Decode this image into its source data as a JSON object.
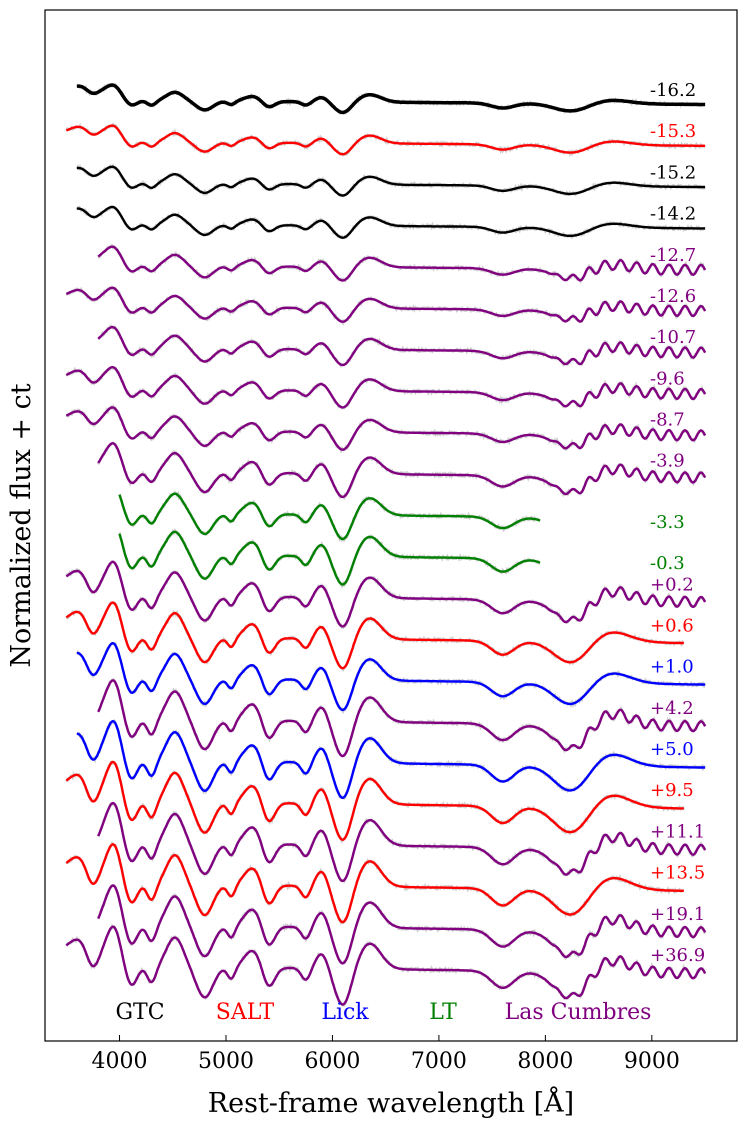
{
  "chart_data": {
    "type": "line",
    "title": "",
    "xlabel": "Rest-frame wavelength [Å]",
    "ylabel": "Normalized flux + ct",
    "xlim": [
      3300,
      9800
    ],
    "xticks": [
      "4000",
      "5000",
      "6000",
      "7000",
      "8000",
      "9000"
    ],
    "xtick_values": [
      4000,
      5000,
      6000,
      7000,
      8000,
      9000
    ],
    "colors": {
      "GTC": "#000000",
      "SALT": "#ff0000",
      "Lick": "#0000ff",
      "LT": "#008000",
      "Las Cumbres": "#800080"
    },
    "legend": [
      "GTC",
      "SALT",
      "Lick",
      "LT",
      "Las Cumbres"
    ],
    "series": [
      {
        "name": "-16.2",
        "telescope": "GTC",
        "x_start": 3600,
        "x_end": 9500
      },
      {
        "name": "-15.3",
        "telescope": "SALT",
        "x_start": 3500,
        "x_end": 9500
      },
      {
        "name": "-15.2",
        "telescope": "GTC",
        "x_start": 3600,
        "x_end": 9500
      },
      {
        "name": "-14.2",
        "telescope": "GTC",
        "x_start": 3600,
        "x_end": 9500
      },
      {
        "name": "-12.7",
        "telescope": "Las Cumbres",
        "x_start": 3800,
        "x_end": 9500
      },
      {
        "name": "-12.6",
        "telescope": "Las Cumbres",
        "x_start": 3500,
        "x_end": 9500
      },
      {
        "name": "-10.7",
        "telescope": "Las Cumbres",
        "x_start": 3800,
        "x_end": 9500
      },
      {
        "name": "-9.6",
        "telescope": "Las Cumbres",
        "x_start": 3500,
        "x_end": 9500
      },
      {
        "name": "-8.7",
        "telescope": "Las Cumbres",
        "x_start": 3500,
        "x_end": 9500
      },
      {
        "name": "-3.9",
        "telescope": "Las Cumbres",
        "x_start": 3800,
        "x_end": 9500
      },
      {
        "name": "-3.3",
        "telescope": "LT",
        "x_start": 4000,
        "x_end": 7950
      },
      {
        "name": "-0.3",
        "telescope": "LT",
        "x_start": 4000,
        "x_end": 7950
      },
      {
        "name": "+0.2",
        "telescope": "Las Cumbres",
        "x_start": 3500,
        "x_end": 9500
      },
      {
        "name": "+0.6",
        "telescope": "SALT",
        "x_start": 3500,
        "x_end": 9300
      },
      {
        "name": "+1.0",
        "telescope": "Lick",
        "x_start": 3600,
        "x_end": 9500
      },
      {
        "name": "+4.2",
        "telescope": "Las Cumbres",
        "x_start": 3800,
        "x_end": 9500
      },
      {
        "name": "+5.0",
        "telescope": "Lick",
        "x_start": 3600,
        "x_end": 9500
      },
      {
        "name": "+9.5",
        "telescope": "SALT",
        "x_start": 3500,
        "x_end": 9300
      },
      {
        "name": "+11.1",
        "telescope": "Las Cumbres",
        "x_start": 3800,
        "x_end": 9500
      },
      {
        "name": "+13.5",
        "telescope": "SALT",
        "x_start": 3500,
        "x_end": 9300
      },
      {
        "name": "+19.1",
        "telescope": "Las Cumbres",
        "x_start": 3800,
        "x_end": 9500
      },
      {
        "name": "+36.9",
        "telescope": "Las Cumbres",
        "x_start": 3500,
        "x_end": 9500
      }
    ]
  }
}
